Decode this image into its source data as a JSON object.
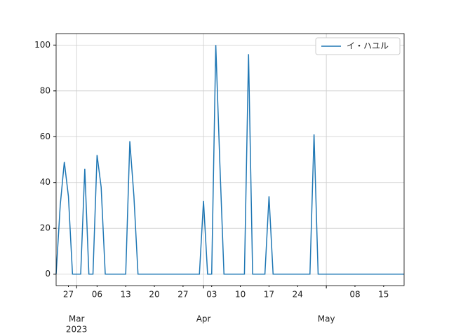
{
  "chart_data": {
    "type": "line",
    "x": [
      "2023-02-24",
      "2023-02-25",
      "2023-02-26",
      "2023-02-27",
      "2023-02-28",
      "2023-03-01",
      "2023-03-02",
      "2023-03-03",
      "2023-03-04",
      "2023-03-05",
      "2023-03-06",
      "2023-03-07",
      "2023-03-08",
      "2023-03-09",
      "2023-03-10",
      "2023-03-11",
      "2023-03-12",
      "2023-03-13",
      "2023-03-14",
      "2023-03-15",
      "2023-03-16",
      "2023-03-17",
      "2023-03-18",
      "2023-03-19",
      "2023-03-20",
      "2023-03-21",
      "2023-03-22",
      "2023-03-23",
      "2023-03-24",
      "2023-03-25",
      "2023-03-26",
      "2023-03-27",
      "2023-03-28",
      "2023-03-29",
      "2023-03-30",
      "2023-03-31",
      "2023-04-01",
      "2023-04-02",
      "2023-04-03",
      "2023-04-04",
      "2023-04-05",
      "2023-04-06",
      "2023-04-07",
      "2023-04-08",
      "2023-04-09",
      "2023-04-10",
      "2023-04-11",
      "2023-04-12",
      "2023-04-13",
      "2023-04-14",
      "2023-04-15",
      "2023-04-16",
      "2023-04-17",
      "2023-04-18",
      "2023-04-19",
      "2023-04-20",
      "2023-04-21",
      "2023-04-22",
      "2023-04-23",
      "2023-04-24",
      "2023-04-25",
      "2023-04-26",
      "2023-04-27",
      "2023-04-28",
      "2023-04-29",
      "2023-04-30",
      "2023-05-01",
      "2023-05-02",
      "2023-05-03",
      "2023-05-04",
      "2023-05-05",
      "2023-05-06",
      "2023-05-07",
      "2023-05-08",
      "2023-05-09",
      "2023-05-10",
      "2023-05-11",
      "2023-05-12",
      "2023-05-13",
      "2023-05-14",
      "2023-05-15",
      "2023-05-16",
      "2023-05-17",
      "2023-05-18",
      "2023-05-19",
      "2023-05-20"
    ],
    "series": [
      {
        "name": "イ・ハユル",
        "color": "#1f77b4",
        "values": [
          0,
          30,
          49,
          34,
          0,
          0,
          0,
          46,
          0,
          0,
          52,
          38,
          0,
          0,
          0,
          0,
          0,
          0,
          58,
          34,
          0,
          0,
          0,
          0,
          0,
          0,
          0,
          0,
          0,
          0,
          0,
          0,
          0,
          0,
          0,
          0,
          32,
          0,
          0,
          100,
          48,
          0,
          0,
          0,
          0,
          0,
          0,
          96,
          0,
          0,
          0,
          0,
          34,
          0,
          0,
          0,
          0,
          0,
          0,
          0,
          0,
          0,
          0,
          61,
          0,
          0,
          0,
          0,
          0,
          0,
          0,
          0,
          0,
          0,
          0,
          0,
          0,
          0,
          0,
          0,
          0,
          0,
          0,
          0,
          0,
          0
        ]
      }
    ],
    "xlim": [
      "2023-02-24",
      "2023-05-20"
    ],
    "xticks": [
      {
        "value": "2023-03-01",
        "label": "Mar"
      },
      {
        "value": "2023-04-01",
        "label": "Apr"
      },
      {
        "value": "2023-05-01",
        "label": "May"
      }
    ],
    "xticks_minor": [
      {
        "value": "2023-02-27",
        "label": "27"
      },
      {
        "value": "2023-03-06",
        "label": "06"
      },
      {
        "value": "2023-03-13",
        "label": "13"
      },
      {
        "value": "2023-03-20",
        "label": "20"
      },
      {
        "value": "2023-03-27",
        "label": "27"
      },
      {
        "value": "2023-04-03",
        "label": "03"
      },
      {
        "value": "2023-04-10",
        "label": "10"
      },
      {
        "value": "2023-04-17",
        "label": "17"
      },
      {
        "value": "2023-04-24",
        "label": "24"
      },
      {
        "value": "2023-05-08",
        "label": "08"
      },
      {
        "value": "2023-05-15",
        "label": "15"
      }
    ],
    "x_offset_label": "2023",
    "ylim": [
      -5,
      105
    ],
    "yticks": [
      0,
      20,
      40,
      60,
      80,
      100
    ],
    "grid": true,
    "legend": "upper right"
  }
}
